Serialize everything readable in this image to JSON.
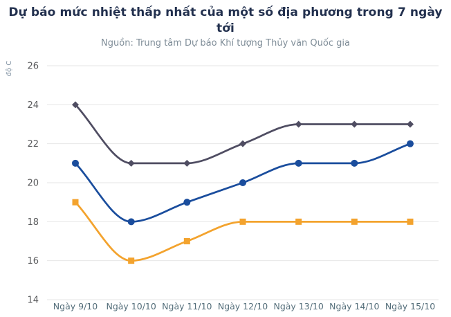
{
  "header": {
    "title": "Dự báo mức nhiệt thấp nhất của một số địa phương trong 7 ngày tới",
    "subtitle": "Nguồn: Trung tâm Dự báo Khí tượng Thủy văn Quốc gia"
  },
  "chart_data": {
    "type": "line",
    "title": "Dự báo mức nhiệt thấp nhất của một số địa phương trong 7 ngày tới",
    "subtitle": "Nguồn: Trung tâm Dự báo Khí tượng Thủy văn Quốc gia",
    "categories": [
      "Ngày 9/10",
      "Ngày 10/10",
      "Ngày 11/10",
      "Ngày 12/10",
      "Ngày 13/10",
      "Ngày 14/10",
      "Ngày 15/10"
    ],
    "xlabel": "",
    "ylabel": "độ C",
    "ylim": [
      14,
      26
    ],
    "yticks": [
      26,
      24,
      22,
      20,
      18,
      16,
      14
    ],
    "grid": true,
    "legend": "none",
    "curve": "smooth",
    "series": [
      {
        "marker": "diamond",
        "color": "#4f4d62",
        "values": [
          24,
          21,
          21,
          22,
          23,
          23,
          23
        ]
      },
      {
        "marker": "circle",
        "color": "#1a4d9d",
        "values": [
          21,
          18,
          19,
          20,
          21,
          21,
          22
        ]
      },
      {
        "marker": "square",
        "color": "#f3a32e",
        "values": [
          19,
          16,
          17,
          18,
          18,
          18,
          18
        ]
      }
    ]
  },
  "colors": {
    "title": "#22304e",
    "subtitle": "#7f8d98",
    "ylabel": "#7d8fa0",
    "ytick": "#595a5c",
    "xtick": "#546e7a",
    "grid": "#e6e6e6",
    "background": "#ffffff"
  }
}
